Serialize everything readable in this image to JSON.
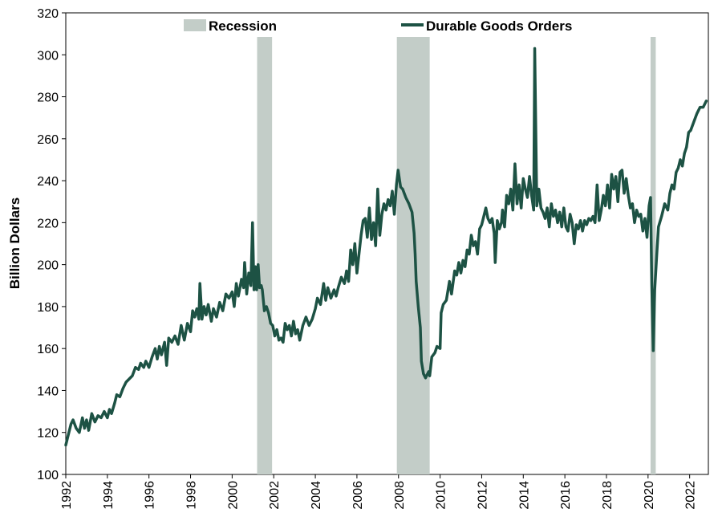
{
  "chart_data": {
    "type": "line",
    "title": "",
    "xlabel": "",
    "ylabel": "Billion Dollars",
    "xlim": [
      1992,
      2022.9
    ],
    "ylim": [
      100,
      320
    ],
    "x_ticks": [
      "1992",
      "1994",
      "1996",
      "1998",
      "2000",
      "2002",
      "2004",
      "2006",
      "2008",
      "2010",
      "2012",
      "2014",
      "2016",
      "2018",
      "2020",
      "2022"
    ],
    "y_ticks": [
      "100",
      "120",
      "140",
      "160",
      "180",
      "200",
      "220",
      "240",
      "260",
      "280",
      "300",
      "320"
    ],
    "grid": false,
    "legend": {
      "placement": "top",
      "entries": [
        {
          "label": "Recession",
          "kind": "band"
        },
        {
          "label": "Durable Goods Orders",
          "kind": "line"
        }
      ]
    },
    "recessions": [
      {
        "start": 2001.2,
        "end": 2001.92
      },
      {
        "start": 2007.92,
        "end": 2009.5
      },
      {
        "start": 2020.12,
        "end": 2020.37
      }
    ],
    "series": [
      {
        "name": "Durable Goods Orders",
        "color": "#1d5244",
        "points": [
          [
            1992.0,
            114
          ],
          [
            1992.1,
            118
          ],
          [
            1992.25,
            124
          ],
          [
            1992.35,
            126
          ],
          [
            1992.5,
            122
          ],
          [
            1992.65,
            120
          ],
          [
            1992.8,
            127
          ],
          [
            1992.9,
            122
          ],
          [
            1993.0,
            126
          ],
          [
            1993.1,
            121
          ],
          [
            1993.25,
            129
          ],
          [
            1993.4,
            125
          ],
          [
            1993.55,
            128
          ],
          [
            1993.7,
            127
          ],
          [
            1993.85,
            130
          ],
          [
            1994.0,
            127
          ],
          [
            1994.1,
            131
          ],
          [
            1994.2,
            129
          ],
          [
            1994.35,
            134
          ],
          [
            1994.45,
            138
          ],
          [
            1994.6,
            137
          ],
          [
            1994.75,
            141
          ],
          [
            1994.9,
            144
          ],
          [
            1995.0,
            145
          ],
          [
            1995.2,
            147
          ],
          [
            1995.35,
            151
          ],
          [
            1995.5,
            150
          ],
          [
            1995.6,
            153
          ],
          [
            1995.75,
            151
          ],
          [
            1995.85,
            154
          ],
          [
            1996.0,
            151
          ],
          [
            1996.15,
            156
          ],
          [
            1996.3,
            160
          ],
          [
            1996.4,
            155
          ],
          [
            1996.5,
            161
          ],
          [
            1996.6,
            157
          ],
          [
            1996.75,
            163
          ],
          [
            1996.85,
            152
          ],
          [
            1996.95,
            165
          ],
          [
            1997.1,
            163
          ],
          [
            1997.25,
            166
          ],
          [
            1997.4,
            162
          ],
          [
            1997.55,
            171
          ],
          [
            1997.7,
            164
          ],
          [
            1997.85,
            172
          ],
          [
            1998.0,
            168
          ],
          [
            1998.1,
            178
          ],
          [
            1998.2,
            175
          ],
          [
            1998.3,
            179
          ],
          [
            1998.4,
            174
          ],
          [
            1998.45,
            191
          ],
          [
            1998.55,
            174
          ],
          [
            1998.65,
            180
          ],
          [
            1998.75,
            176
          ],
          [
            1998.85,
            181
          ],
          [
            1999.0,
            173
          ],
          [
            1999.1,
            179
          ],
          [
            1999.25,
            175
          ],
          [
            1999.4,
            182
          ],
          [
            1999.55,
            178
          ],
          [
            1999.7,
            186
          ],
          [
            1999.85,
            184
          ],
          [
            2000.0,
            187
          ],
          [
            2000.1,
            180
          ],
          [
            2000.2,
            191
          ],
          [
            2000.3,
            185
          ],
          [
            2000.45,
            193
          ],
          [
            2000.55,
            189
          ],
          [
            2000.6,
            201
          ],
          [
            2000.7,
            186
          ],
          [
            2000.8,
            196
          ],
          [
            2000.9,
            190
          ],
          [
            2000.98,
            220
          ],
          [
            2001.05,
            188
          ],
          [
            2001.12,
            199
          ],
          [
            2001.18,
            188
          ],
          [
            2001.25,
            200
          ],
          [
            2001.32,
            189
          ],
          [
            2001.4,
            190
          ],
          [
            2001.45,
            188
          ],
          [
            2001.55,
            178
          ],
          [
            2001.65,
            180
          ],
          [
            2001.75,
            177
          ],
          [
            2001.85,
            172
          ],
          [
            2001.95,
            171
          ],
          [
            2002.05,
            166
          ],
          [
            2002.15,
            169
          ],
          [
            2002.25,
            164
          ],
          [
            2002.35,
            165
          ],
          [
            2002.45,
            163
          ],
          [
            2002.55,
            172
          ],
          [
            2002.65,
            169
          ],
          [
            2002.75,
            171
          ],
          [
            2002.85,
            166
          ],
          [
            2002.95,
            173
          ],
          [
            2003.05,
            167
          ],
          [
            2003.15,
            169
          ],
          [
            2003.25,
            164
          ],
          [
            2003.4,
            171
          ],
          [
            2003.55,
            175
          ],
          [
            2003.7,
            171
          ],
          [
            2003.85,
            174
          ],
          [
            2004.0,
            179
          ],
          [
            2004.1,
            184
          ],
          [
            2004.25,
            181
          ],
          [
            2004.4,
            191
          ],
          [
            2004.5,
            183
          ],
          [
            2004.6,
            189
          ],
          [
            2004.75,
            184
          ],
          [
            2004.9,
            188
          ],
          [
            2005.0,
            185
          ],
          [
            2005.1,
            189
          ],
          [
            2005.25,
            194
          ],
          [
            2005.4,
            191
          ],
          [
            2005.5,
            197
          ],
          [
            2005.6,
            192
          ],
          [
            2005.7,
            207
          ],
          [
            2005.8,
            200
          ],
          [
            2005.9,
            210
          ],
          [
            2006.0,
            196
          ],
          [
            2006.1,
            205
          ],
          [
            2006.2,
            214
          ],
          [
            2006.3,
            221
          ],
          [
            2006.4,
            222
          ],
          [
            2006.5,
            213
          ],
          [
            2006.6,
            227
          ],
          [
            2006.7,
            212
          ],
          [
            2006.8,
            220
          ],
          [
            2006.9,
            209
          ],
          [
            2007.0,
            236
          ],
          [
            2007.1,
            214
          ],
          [
            2007.2,
            224
          ],
          [
            2007.3,
            229
          ],
          [
            2007.4,
            226
          ],
          [
            2007.5,
            231
          ],
          [
            2007.6,
            228
          ],
          [
            2007.7,
            235
          ],
          [
            2007.8,
            224
          ],
          [
            2007.9,
            238
          ],
          [
            2007.98,
            245
          ],
          [
            2008.1,
            237
          ],
          [
            2008.2,
            236
          ],
          [
            2008.35,
            232
          ],
          [
            2008.5,
            229
          ],
          [
            2008.65,
            225
          ],
          [
            2008.75,
            215
          ],
          [
            2008.8,
            205
          ],
          [
            2008.85,
            192
          ],
          [
            2008.95,
            180
          ],
          [
            2009.05,
            170
          ],
          [
            2009.1,
            154
          ],
          [
            2009.2,
            148
          ],
          [
            2009.3,
            146
          ],
          [
            2009.45,
            149
          ],
          [
            2009.5,
            147
          ],
          [
            2009.6,
            156
          ],
          [
            2009.75,
            158
          ],
          [
            2009.85,
            161
          ],
          [
            2010.0,
            160
          ],
          [
            2010.05,
            177
          ],
          [
            2010.15,
            181
          ],
          [
            2010.3,
            183
          ],
          [
            2010.45,
            192
          ],
          [
            2010.55,
            186
          ],
          [
            2010.7,
            197
          ],
          [
            2010.8,
            195
          ],
          [
            2010.9,
            201
          ],
          [
            2011.0,
            196
          ],
          [
            2011.1,
            202
          ],
          [
            2011.2,
            199
          ],
          [
            2011.3,
            207
          ],
          [
            2011.4,
            205
          ],
          [
            2011.5,
            214
          ],
          [
            2011.6,
            209
          ],
          [
            2011.7,
            211
          ],
          [
            2011.8,
            205
          ],
          [
            2011.9,
            217
          ],
          [
            2012.0,
            219
          ],
          [
            2012.1,
            223
          ],
          [
            2012.2,
            227
          ],
          [
            2012.3,
            222
          ],
          [
            2012.4,
            220
          ],
          [
            2012.5,
            222
          ],
          [
            2012.6,
            215
          ],
          [
            2012.65,
            201
          ],
          [
            2012.75,
            221
          ],
          [
            2012.85,
            217
          ],
          [
            2012.95,
            220
          ],
          [
            2013.0,
            226
          ],
          [
            2013.1,
            218
          ],
          [
            2013.2,
            233
          ],
          [
            2013.3,
            229
          ],
          [
            2013.4,
            236
          ],
          [
            2013.5,
            226
          ],
          [
            2013.6,
            248
          ],
          [
            2013.7,
            229
          ],
          [
            2013.8,
            238
          ],
          [
            2013.9,
            227
          ],
          [
            2014.0,
            241
          ],
          [
            2014.1,
            236
          ],
          [
            2014.2,
            232
          ],
          [
            2014.3,
            242
          ],
          [
            2014.4,
            233
          ],
          [
            2014.5,
            226
          ],
          [
            2014.55,
            303
          ],
          [
            2014.65,
            228
          ],
          [
            2014.75,
            236
          ],
          [
            2014.85,
            227
          ],
          [
            2014.95,
            225
          ],
          [
            2015.05,
            222
          ],
          [
            2015.15,
            227
          ],
          [
            2015.25,
            218
          ],
          [
            2015.35,
            229
          ],
          [
            2015.45,
            223
          ],
          [
            2015.55,
            226
          ],
          [
            2015.65,
            220
          ],
          [
            2015.75,
            225
          ],
          [
            2015.85,
            218
          ],
          [
            2015.95,
            227
          ],
          [
            2016.05,
            218
          ],
          [
            2016.15,
            216
          ],
          [
            2016.25,
            224
          ],
          [
            2016.35,
            220
          ],
          [
            2016.45,
            210
          ],
          [
            2016.55,
            219
          ],
          [
            2016.65,
            217
          ],
          [
            2016.75,
            221
          ],
          [
            2016.85,
            216
          ],
          [
            2016.95,
            221
          ],
          [
            2017.05,
            219
          ],
          [
            2017.15,
            222
          ],
          [
            2017.25,
            221
          ],
          [
            2017.35,
            223
          ],
          [
            2017.45,
            220
          ],
          [
            2017.55,
            238
          ],
          [
            2017.65,
            221
          ],
          [
            2017.75,
            226
          ],
          [
            2017.85,
            233
          ],
          [
            2017.95,
            228
          ],
          [
            2018.05,
            238
          ],
          [
            2018.15,
            227
          ],
          [
            2018.25,
            243
          ],
          [
            2018.35,
            236
          ],
          [
            2018.45,
            242
          ],
          [
            2018.55,
            230
          ],
          [
            2018.65,
            244
          ],
          [
            2018.75,
            245
          ],
          [
            2018.85,
            234
          ],
          [
            2018.95,
            241
          ],
          [
            2019.05,
            233
          ],
          [
            2019.15,
            227
          ],
          [
            2019.25,
            229
          ],
          [
            2019.35,
            220
          ],
          [
            2019.45,
            226
          ],
          [
            2019.55,
            223
          ],
          [
            2019.65,
            224
          ],
          [
            2019.75,
            216
          ],
          [
            2019.85,
            222
          ],
          [
            2019.95,
            213
          ],
          [
            2020.05,
            228
          ],
          [
            2020.12,
            232
          ],
          [
            2020.18,
            190
          ],
          [
            2020.25,
            159
          ],
          [
            2020.32,
            188
          ],
          [
            2020.42,
            205
          ],
          [
            2020.5,
            218
          ],
          [
            2020.65,
            223
          ],
          [
            2020.8,
            229
          ],
          [
            2020.95,
            226
          ],
          [
            2021.05,
            234
          ],
          [
            2021.15,
            238
          ],
          [
            2021.25,
            236
          ],
          [
            2021.35,
            244
          ],
          [
            2021.45,
            246
          ],
          [
            2021.55,
            250
          ],
          [
            2021.65,
            247
          ],
          [
            2021.75,
            253
          ],
          [
            2021.85,
            256
          ],
          [
            2021.95,
            263
          ],
          [
            2022.05,
            264
          ],
          [
            2022.2,
            268
          ],
          [
            2022.35,
            272
          ],
          [
            2022.5,
            275
          ],
          [
            2022.65,
            275
          ],
          [
            2022.8,
            278
          ]
        ]
      }
    ]
  }
}
